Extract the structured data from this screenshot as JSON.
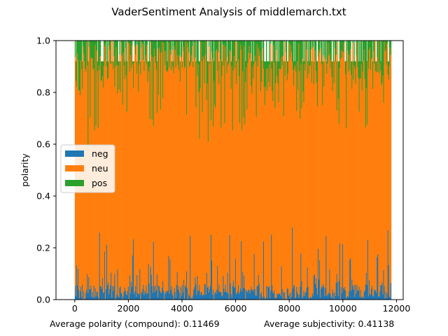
{
  "chart_data": {
    "type": "bar",
    "stacked": true,
    "title": "VaderSentiment Analysis of middlemarch.txt",
    "xlabel": "",
    "ylabel": "polarity",
    "xlim": [
      -700,
      12250
    ],
    "ylim": [
      0,
      1.0
    ],
    "x_ticks": [
      0,
      2000,
      4000,
      6000,
      8000,
      10000,
      12000
    ],
    "x_tick_labels": [
      "0",
      "2000",
      "4000",
      "6000",
      "8000",
      "10000",
      "12000"
    ],
    "y_ticks": [
      0,
      0.2,
      0.4,
      0.6,
      0.8,
      1.0
    ],
    "y_tick_labels": [
      "0.0",
      "0.2",
      "0.4",
      "0.6",
      "0.8",
      "1.0"
    ],
    "x_range": [
      0,
      11800
    ],
    "sentence_count": 11800,
    "legend": {
      "position": "center-left"
    },
    "series": [
      {
        "name": "neg",
        "color": "#1f77b4",
        "typical_range": [
          0.0,
          0.3
        ]
      },
      {
        "name": "neu",
        "color": "#ff7f0e",
        "typical_range": [
          0.5,
          1.0
        ]
      },
      {
        "name": "pos",
        "color": "#2ca02c",
        "typical_range": [
          0.0,
          0.4
        ]
      }
    ],
    "grid": false,
    "footer_left": "Average polarity (compound): 0.11469",
    "footer_right": "Average subjectivity: 0.41138"
  }
}
